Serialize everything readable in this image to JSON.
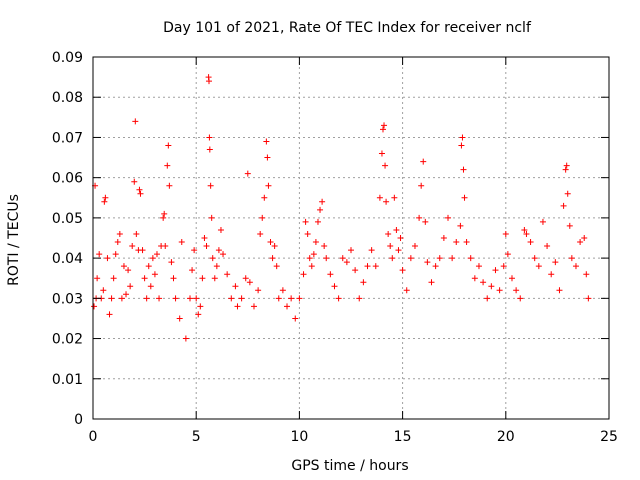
{
  "chart_data": {
    "type": "scatter",
    "title": "Day 101 of 2021, Rate Of TEC Index for receiver nclf",
    "xlabel": "GPS time / hours",
    "ylabel": "ROTI / TECUs",
    "xlim": [
      0,
      25
    ],
    "ylim": [
      0,
      0.09
    ],
    "x_ticks": [
      0,
      5,
      10,
      15,
      20,
      25
    ],
    "x_tick_labels": [
      "0",
      "5",
      "10",
      "15",
      "20",
      "25"
    ],
    "y_ticks": [
      0,
      0.01,
      0.02,
      0.03,
      0.04,
      0.05,
      0.06,
      0.07,
      0.08,
      0.09
    ],
    "y_tick_labels": [
      "0",
      "0.01",
      "0.02",
      "0.03",
      "0.04",
      "0.05",
      "0.06",
      "0.07",
      "0.08",
      "0.09"
    ],
    "grid": true,
    "marker": "plus",
    "color": "#ff0000",
    "series": [
      {
        "name": "ROTI",
        "points": [
          [
            0.05,
            0.028
          ],
          [
            0.1,
            0.058
          ],
          [
            0.15,
            0.03
          ],
          [
            0.2,
            0.035
          ],
          [
            0.3,
            0.041
          ],
          [
            0.4,
            0.03
          ],
          [
            0.5,
            0.032
          ],
          [
            0.55,
            0.054
          ],
          [
            0.6,
            0.055
          ],
          [
            0.7,
            0.04
          ],
          [
            0.8,
            0.026
          ],
          [
            0.9,
            0.03
          ],
          [
            1.0,
            0.035
          ],
          [
            1.1,
            0.041
          ],
          [
            1.2,
            0.044
          ],
          [
            1.3,
            0.046
          ],
          [
            1.4,
            0.03
          ],
          [
            1.5,
            0.038
          ],
          [
            1.6,
            0.031
          ],
          [
            1.7,
            0.037
          ],
          [
            1.8,
            0.033
          ],
          [
            1.9,
            0.043
          ],
          [
            2.0,
            0.059
          ],
          [
            2.05,
            0.074
          ],
          [
            2.1,
            0.046
          ],
          [
            2.2,
            0.042
          ],
          [
            2.25,
            0.057
          ],
          [
            2.3,
            0.056
          ],
          [
            2.4,
            0.042
          ],
          [
            2.5,
            0.035
          ],
          [
            2.6,
            0.03
          ],
          [
            2.7,
            0.038
          ],
          [
            2.8,
            0.033
          ],
          [
            2.9,
            0.04
          ],
          [
            3.0,
            0.036
          ],
          [
            3.1,
            0.041
          ],
          [
            3.2,
            0.03
          ],
          [
            3.3,
            0.043
          ],
          [
            3.4,
            0.05
          ],
          [
            3.45,
            0.051
          ],
          [
            3.5,
            0.043
          ],
          [
            3.6,
            0.063
          ],
          [
            3.65,
            0.068
          ],
          [
            3.7,
            0.058
          ],
          [
            3.8,
            0.039
          ],
          [
            3.9,
            0.035
          ],
          [
            4.0,
            0.03
          ],
          [
            4.2,
            0.025
          ],
          [
            4.3,
            0.044
          ],
          [
            4.5,
            0.02
          ],
          [
            4.7,
            0.03
          ],
          [
            4.8,
            0.037
          ],
          [
            4.9,
            0.042
          ],
          [
            5.0,
            0.03
          ],
          [
            5.1,
            0.026
          ],
          [
            5.2,
            0.028
          ],
          [
            5.3,
            0.035
          ],
          [
            5.4,
            0.045
          ],
          [
            5.5,
            0.043
          ],
          [
            5.6,
            0.085
          ],
          [
            5.62,
            0.084
          ],
          [
            5.64,
            0.07
          ],
          [
            5.66,
            0.067
          ],
          [
            5.7,
            0.058
          ],
          [
            5.75,
            0.05
          ],
          [
            5.8,
            0.04
          ],
          [
            5.9,
            0.035
          ],
          [
            6.0,
            0.038
          ],
          [
            6.1,
            0.042
          ],
          [
            6.2,
            0.047
          ],
          [
            6.3,
            0.041
          ],
          [
            6.5,
            0.036
          ],
          [
            6.7,
            0.03
          ],
          [
            6.9,
            0.033
          ],
          [
            7.0,
            0.028
          ],
          [
            7.2,
            0.03
          ],
          [
            7.4,
            0.035
          ],
          [
            7.5,
            0.061
          ],
          [
            7.6,
            0.034
          ],
          [
            7.8,
            0.028
          ],
          [
            8.0,
            0.032
          ],
          [
            8.1,
            0.046
          ],
          [
            8.2,
            0.05
          ],
          [
            8.3,
            0.055
          ],
          [
            8.4,
            0.069
          ],
          [
            8.45,
            0.065
          ],
          [
            8.5,
            0.058
          ],
          [
            8.6,
            0.044
          ],
          [
            8.7,
            0.04
          ],
          [
            8.8,
            0.043
          ],
          [
            8.9,
            0.038
          ],
          [
            9.0,
            0.03
          ],
          [
            9.2,
            0.032
          ],
          [
            9.4,
            0.028
          ],
          [
            9.6,
            0.03
          ],
          [
            9.8,
            0.025
          ],
          [
            10.0,
            0.03
          ],
          [
            10.2,
            0.036
          ],
          [
            10.3,
            0.049
          ],
          [
            10.4,
            0.046
          ],
          [
            10.5,
            0.04
          ],
          [
            10.6,
            0.038
          ],
          [
            10.7,
            0.041
          ],
          [
            10.8,
            0.044
          ],
          [
            10.9,
            0.049
          ],
          [
            11.0,
            0.052
          ],
          [
            11.1,
            0.054
          ],
          [
            11.2,
            0.043
          ],
          [
            11.3,
            0.04
          ],
          [
            11.5,
            0.036
          ],
          [
            11.7,
            0.033
          ],
          [
            11.9,
            0.03
          ],
          [
            12.1,
            0.04
          ],
          [
            12.3,
            0.039
          ],
          [
            12.5,
            0.042
          ],
          [
            12.7,
            0.037
          ],
          [
            12.9,
            0.03
          ],
          [
            13.1,
            0.034
          ],
          [
            13.3,
            0.038
          ],
          [
            13.5,
            0.042
          ],
          [
            13.7,
            0.038
          ],
          [
            13.9,
            0.055
          ],
          [
            14.0,
            0.066
          ],
          [
            14.05,
            0.072
          ],
          [
            14.1,
            0.073
          ],
          [
            14.15,
            0.063
          ],
          [
            14.2,
            0.054
          ],
          [
            14.3,
            0.046
          ],
          [
            14.4,
            0.043
          ],
          [
            14.5,
            0.04
          ],
          [
            14.6,
            0.055
          ],
          [
            14.7,
            0.047
          ],
          [
            14.8,
            0.042
          ],
          [
            14.9,
            0.045
          ],
          [
            15.0,
            0.037
          ],
          [
            15.2,
            0.032
          ],
          [
            15.4,
            0.04
          ],
          [
            15.6,
            0.043
          ],
          [
            15.8,
            0.05
          ],
          [
            15.9,
            0.058
          ],
          [
            16.0,
            0.064
          ],
          [
            16.1,
            0.049
          ],
          [
            16.2,
            0.039
          ],
          [
            16.4,
            0.034
          ],
          [
            16.6,
            0.038
          ],
          [
            16.8,
            0.04
          ],
          [
            17.0,
            0.045
          ],
          [
            17.2,
            0.05
          ],
          [
            17.4,
            0.04
          ],
          [
            17.6,
            0.044
          ],
          [
            17.8,
            0.048
          ],
          [
            17.85,
            0.068
          ],
          [
            17.9,
            0.07
          ],
          [
            17.95,
            0.062
          ],
          [
            18.0,
            0.055
          ],
          [
            18.1,
            0.044
          ],
          [
            18.3,
            0.04
          ],
          [
            18.5,
            0.035
          ],
          [
            18.7,
            0.038
          ],
          [
            18.9,
            0.034
          ],
          [
            19.1,
            0.03
          ],
          [
            19.3,
            0.033
          ],
          [
            19.5,
            0.037
          ],
          [
            19.7,
            0.032
          ],
          [
            19.9,
            0.038
          ],
          [
            20.0,
            0.046
          ],
          [
            20.1,
            0.041
          ],
          [
            20.3,
            0.035
          ],
          [
            20.5,
            0.032
          ],
          [
            20.7,
            0.03
          ],
          [
            20.9,
            0.047
          ],
          [
            21.0,
            0.046
          ],
          [
            21.2,
            0.044
          ],
          [
            21.4,
            0.04
          ],
          [
            21.6,
            0.038
          ],
          [
            21.8,
            0.049
          ],
          [
            22.0,
            0.043
          ],
          [
            22.2,
            0.036
          ],
          [
            22.4,
            0.039
          ],
          [
            22.6,
            0.032
          ],
          [
            22.8,
            0.053
          ],
          [
            22.9,
            0.062
          ],
          [
            22.95,
            0.063
          ],
          [
            23.0,
            0.056
          ],
          [
            23.1,
            0.048
          ],
          [
            23.2,
            0.04
          ],
          [
            23.4,
            0.038
          ],
          [
            23.6,
            0.044
          ],
          [
            23.8,
            0.045
          ],
          [
            23.9,
            0.036
          ],
          [
            24.0,
            0.03
          ]
        ]
      }
    ]
  }
}
